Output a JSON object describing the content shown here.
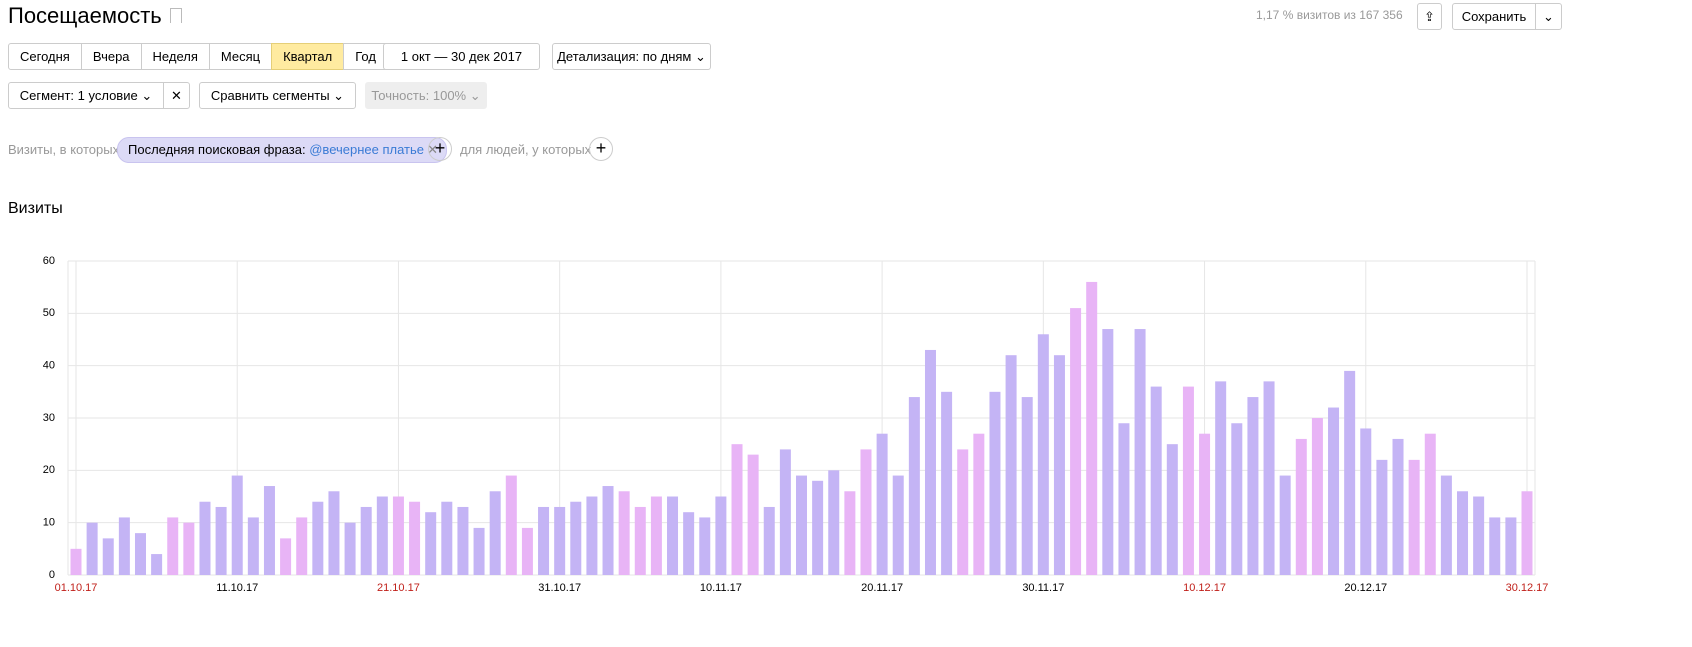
{
  "header": {
    "title": "Посещаемость",
    "stats": "1,17 % визитов из 167 356",
    "save": "Сохранить"
  },
  "periods": [
    "Сегодня",
    "Вчера",
    "Неделя",
    "Месяц",
    "Квартал",
    "Год"
  ],
  "date_range": "1 окт — 30 дек 2017",
  "detail": "Детализация: по дням",
  "segment": "Сегмент: 1 условие",
  "compare": "Сравнить сегменты",
  "accuracy": "Точность: 100%",
  "filter": {
    "prefix": "Визиты, в которых",
    "tag_label": "Последняя поисковая фраза:",
    "tag_value": "@вечернее платье",
    "suffix": "для людей, у которых"
  },
  "chart_data": {
    "type": "bar",
    "title": "Визиты",
    "categories": [
      "01.10.17",
      null,
      null,
      null,
      null,
      null,
      null,
      null,
      null,
      null,
      "11.10.17",
      null,
      null,
      null,
      null,
      null,
      null,
      null,
      null,
      null,
      "21.10.17",
      null,
      null,
      null,
      null,
      null,
      null,
      null,
      null,
      null,
      "31.10.17",
      null,
      null,
      null,
      null,
      null,
      null,
      null,
      null,
      null,
      "10.11.17",
      null,
      null,
      null,
      null,
      null,
      null,
      null,
      null,
      null,
      "20.11.17",
      null,
      null,
      null,
      null,
      null,
      null,
      null,
      null,
      null,
      "30.11.17",
      null,
      null,
      null,
      null,
      null,
      null,
      null,
      null,
      null,
      "10.12.17",
      null,
      null,
      null,
      null,
      null,
      null,
      null,
      null,
      null,
      "20.12.17",
      null,
      null,
      null,
      null,
      null,
      null,
      null,
      null,
      null,
      "30.12.17"
    ],
    "values": [
      5,
      10,
      7,
      11,
      8,
      4,
      11,
      10,
      14,
      13,
      19,
      11,
      17,
      7,
      11,
      14,
      16,
      10,
      13,
      15,
      15,
      14,
      12,
      14,
      13,
      9,
      16,
      19,
      9,
      13,
      13,
      14,
      15,
      17,
      16,
      13,
      15,
      15,
      12,
      11,
      15,
      25,
      23,
      13,
      24,
      19,
      18,
      20,
      16,
      24,
      27,
      19,
      34,
      43,
      35,
      24,
      27,
      35,
      42,
      34,
      46,
      42,
      51,
      56,
      47,
      29,
      47,
      36,
      25,
      36,
      27,
      37,
      29,
      34,
      37,
      19,
      26,
      30,
      32,
      39,
      28,
      22,
      26,
      22,
      27,
      19,
      16,
      15,
      11,
      11,
      16
    ],
    "color": "#c4b4f5",
    "colors": [
      "#e8b4f6",
      "#c4b4f5",
      "#c4b4f5",
      "#c4b4f5",
      "#c4b4f5",
      "#c4b4f5",
      "#e8b4f6",
      "#e8b4f6",
      "#c4b4f5",
      "#c4b4f5",
      "#c4b4f5",
      "#c4b4f5",
      "#c4b4f5",
      "#e8b4f6",
      "#e8b4f6",
      "#c4b4f5",
      "#c4b4f5",
      "#c4b4f5",
      "#c4b4f5",
      "#c4b4f5",
      "#e8b4f6",
      "#e8b4f6",
      "#c4b4f5",
      "#c4b4f5",
      "#c4b4f5",
      "#c4b4f5",
      "#c4b4f5",
      "#e8b4f6",
      "#e8b4f6",
      "#c4b4f5",
      "#c4b4f5",
      "#c4b4f5",
      "#c4b4f5",
      "#c4b4f5",
      "#e8b4f6",
      "#e8b4f6",
      "#e8b4f6",
      "#c4b4f5",
      "#c4b4f5",
      "#c4b4f5",
      "#c4b4f5",
      "#e8b4f6",
      "#e8b4f6",
      "#c4b4f5",
      "#c4b4f5",
      "#c4b4f5",
      "#c4b4f5",
      "#c4b4f5",
      "#e8b4f6",
      "#e8b4f6",
      "#c4b4f5",
      "#c4b4f5",
      "#c4b4f5",
      "#c4b4f5",
      "#c4b4f5",
      "#e8b4f6",
      "#e8b4f6",
      "#c4b4f5",
      "#c4b4f5",
      "#c4b4f5",
      "#c4b4f5",
      "#c4b4f5",
      "#e8b4f6",
      "#e8b4f6",
      "#c4b4f5",
      "#c4b4f5",
      "#c4b4f5",
      "#c4b4f5",
      "#c4b4f5",
      "#e8b4f6",
      "#e8b4f6",
      "#c4b4f5",
      "#c4b4f5",
      "#c4b4f5",
      "#c4b4f5",
      "#c4b4f5",
      "#e8b4f6",
      "#e8b4f6",
      "#c4b4f5",
      "#c4b4f5",
      "#c4b4f5",
      "#c4b4f5",
      "#c4b4f5",
      "#e8b4f6",
      "#e8b4f6",
      "#c4b4f5",
      "#c4b4f5",
      "#c4b4f5",
      "#c4b4f5",
      "#c4b4f5",
      "#e8b4f6"
    ],
    "ylim": [
      0,
      60
    ],
    "yticks": [
      0,
      10,
      20,
      30,
      40,
      50,
      60
    ],
    "grid": true
  }
}
